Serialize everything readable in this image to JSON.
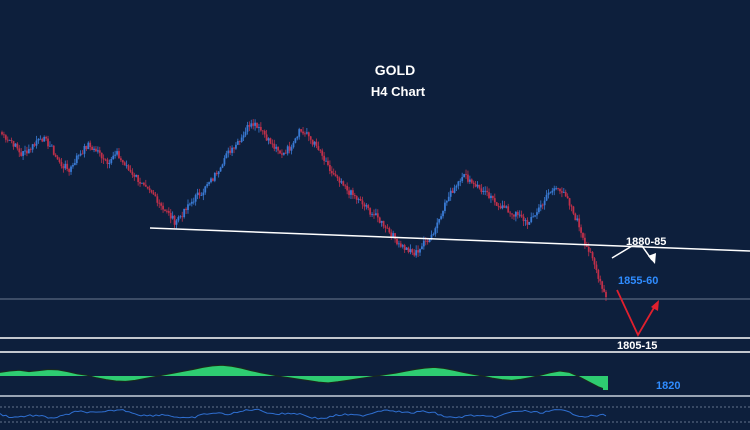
{
  "chart_data": {
    "type": "candlestick",
    "title": "GOLD",
    "subtitle": "H4 Chart",
    "labels": {
      "resistance": "1880-85",
      "pivot": "1855-60",
      "support": "1805-15",
      "indicator_level": "1820"
    },
    "colors": {
      "background": "#0d1f3c",
      "bull_candle": "#3a7bd5",
      "bear_candle": "#c0304a",
      "trendline": "#ffffff",
      "level_line": "#ffffff",
      "current_price_line": "#6a7a90",
      "down_move_arrow": "#e0202e",
      "up_move_arrow": "#ffffff",
      "pivot_label": "#2f8cff",
      "indicator_fill": "#2ecc71",
      "indicator_line": "#1a2b1a",
      "lower_indicator_line": "#2f6fd0"
    },
    "price_path": [
      1885,
      1882,
      1876,
      1879,
      1884,
      1880,
      1872,
      1869,
      1876,
      1880,
      1877,
      1873,
      1876,
      1870,
      1866,
      1860,
      1857,
      1851,
      1846,
      1850,
      1856,
      1860,
      1865,
      1873,
      1879,
      1884,
      1891,
      1888,
      1881,
      1876,
      1879,
      1887,
      1884,
      1878,
      1870,
      1864,
      1860,
      1856,
      1852,
      1848,
      1844,
      1838,
      1834,
      1831,
      1836,
      1841,
      1852,
      1860,
      1867,
      1864,
      1860,
      1856,
      1853,
      1850,
      1848,
      1845,
      1852,
      1858,
      1862,
      1855,
      1846,
      1835,
      1824,
      1812
    ],
    "oscillator_path": [
      1.0,
      1.4,
      1.6,
      1.2,
      1.5,
      1.8,
      1.7,
      1.2,
      0.6,
      0.2,
      -0.5,
      -1.0,
      -1.4,
      -1.5,
      -1.2,
      -0.7,
      -0.2,
      0.3,
      0.8,
      1.3,
      1.8,
      2.4,
      2.8,
      3.0,
      2.7,
      2.2,
      1.5,
      0.9,
      0.4,
      -0.1,
      -0.5,
      -0.9,
      -1.3,
      -1.7,
      -1.9,
      -1.6,
      -1.2,
      -0.8,
      -0.4,
      0.0,
      0.4,
      0.8,
      1.3,
      1.8,
      2.2,
      2.4,
      2.1,
      1.6,
      1.0,
      0.5,
      0.0,
      -0.6,
      -1.0,
      -1.2,
      -0.9,
      -0.4,
      0.2,
      0.9,
      1.4,
      1.0,
      -0.2,
      -1.6,
      -3.0,
      -4.0
    ],
    "grid": false
  }
}
